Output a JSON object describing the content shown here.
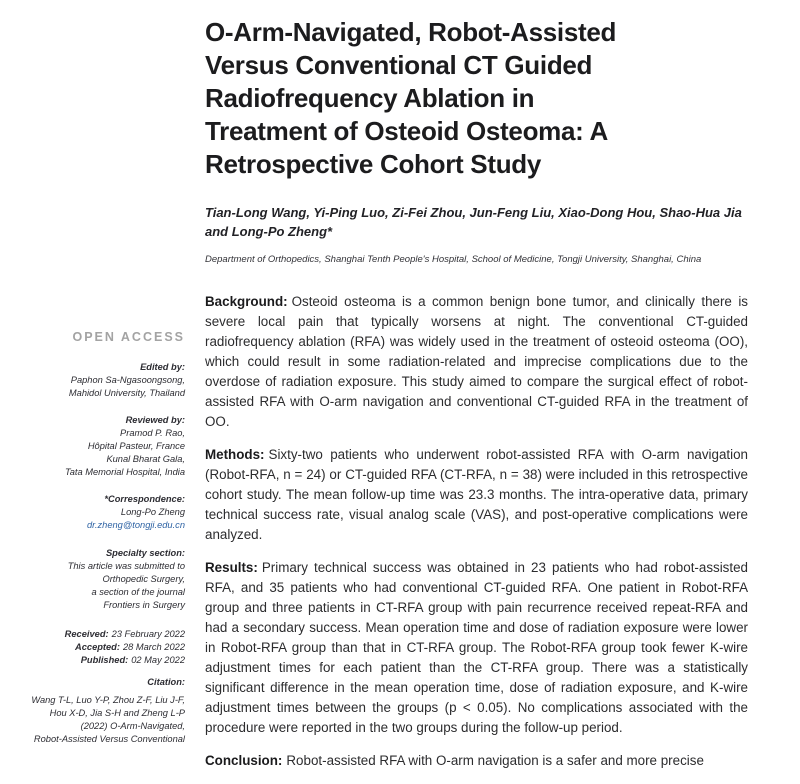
{
  "article": {
    "title_lines": [
      "O-Arm-Navigated, Robot-Assisted",
      "Versus Conventional CT Guided",
      "Radiofrequency Ablation in",
      "Treatment of Osteoid Osteoma: A",
      "Retrospective Cohort Study"
    ],
    "author_lines": [
      "Tian-Long Wang, Yi-Ping Luo, Zi-Fei Zhou, Jun-Feng Liu, Xiao-Dong Hou, Shao-Hua Jia",
      "and Long-Po Zheng*"
    ],
    "affiliation": "Department of Orthopedics, Shanghai Tenth People's Hospital, School of Medicine, Tongji University, Shanghai, China"
  },
  "sidebar": {
    "open_access": "OPEN ACCESS",
    "edited": {
      "label": "Edited by:",
      "lines": [
        "Paphon Sa-Ngasoongsong,",
        "Mahidol University, Thailand"
      ]
    },
    "reviewed": {
      "label": "Reviewed by:",
      "lines": [
        "Pramod P. Rao,",
        "Hôpital Pasteur, France",
        "Kunal Bharat Gala,",
        "Tata Memorial Hospital, India"
      ]
    },
    "correspondence": {
      "label": "*Correspondence:",
      "name": "Long-Po Zheng",
      "email": "dr.zheng@tongji.edu.cn"
    },
    "specialty": {
      "label": "Specialty section:",
      "lines": [
        "This article was submitted to",
        "Orthopedic Surgery,",
        "a section of the journal",
        "Frontiers in Surgery"
      ]
    },
    "dates": [
      {
        "label": "Received:",
        "value": "23 February 2022"
      },
      {
        "label": "Accepted:",
        "value": "28 March 2022"
      },
      {
        "label": "Published:",
        "value": "02 May 2022"
      }
    ],
    "citation": {
      "label": "Citation:",
      "lines": [
        "Wang T-L, Luo Y-P, Zhou Z-F, Liu J-F,",
        "Hou X-D, Jia S-H and Zheng L-P",
        "(2022) O-Arm-Navigated,",
        "Robot-Assisted Versus Conventional"
      ]
    }
  },
  "abstract": {
    "sections": [
      {
        "label": "Background:",
        "text": "Osteoid osteoma is a common benign bone tumor, and clinically there is severe local pain that typically worsens at night. The conventional CT-guided radiofrequency ablation (RFA) was widely used in the treatment of osteoid osteoma (OO), which could result in some radiation-related and imprecise complications due to the overdose of radiation exposure. This study aimed to compare the surgical effect of robot-assisted RFA with O-arm navigation and conventional CT-guided RFA in the treatment of OO."
      },
      {
        "label": "Methods:",
        "text": "Sixty-two patients who underwent robot-assisted RFA with O-arm navigation (Robot-RFA, n = 24) or CT-guided RFA (CT-RFA, n = 38) were included in this retrospective cohort study. The mean follow-up time was 23.3 months. The intra-operative data, primary technical success rate, visual analog scale (VAS), and post-operative complications were analyzed."
      },
      {
        "label": "Results:",
        "text": "Primary technical success was obtained in 23 patients who had robot-assisted RFA, and 35 patients who had conventional CT-guided RFA. One patient in Robot-RFA group and three patients in CT-RFA group with pain recurrence received repeat-RFA and had a secondary success. Mean operation time and dose of radiation exposure were lower in Robot-RFA group than that in CT-RFA group. The Robot-RFA group took fewer K-wire adjustment times for each patient than the CT-RFA group. There was a statistically significant difference in the mean operation time, dose of radiation exposure, and K-wire adjustment times between the groups (p < 0.05). No complications associated with the procedure were reported in the two groups during the follow-up period."
      },
      {
        "label": "Conclusion:",
        "text": "Robot-assisted RFA with O-arm navigation is a safer and more precise"
      }
    ]
  },
  "colors": {
    "email_link": "#2e63a4",
    "open_access_gray": "#a3a3a3",
    "title_text": "#1c1c1e"
  }
}
